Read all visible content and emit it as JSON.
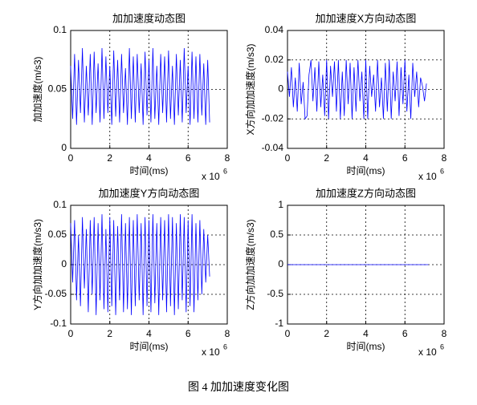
{
  "caption": "图 4 加加速度变化图",
  "chart_data": [
    {
      "type": "line",
      "title": "加加速度动态图",
      "xlabel": "时间(ms)",
      "ylabel": "加加速度(m/s3)",
      "x_scale": {
        "base": "x 10",
        "power": "6"
      },
      "x": [
        0,
        0.1,
        0.2,
        0.3,
        0.4,
        0.5,
        0.6,
        0.7,
        0.8,
        0.9,
        1,
        1.1,
        1.2,
        1.3,
        1.4,
        1.5,
        1.6,
        1.7,
        1.8,
        1.9,
        2,
        2.1,
        2.2,
        2.3,
        2.4,
        2.5,
        2.6,
        2.7,
        2.8,
        2.9,
        3,
        3.1,
        3.2,
        3.3,
        3.4,
        3.5,
        3.6,
        3.7,
        3.8,
        3.9,
        4,
        4.1,
        4.2,
        4.3,
        4.4,
        4.5,
        4.6,
        4.7,
        4.8,
        4.9,
        5,
        5.1,
        5.2,
        5.3,
        5.4,
        5.5,
        5.6,
        5.7,
        5.8,
        5.9,
        6,
        6.1,
        6.2,
        6.3,
        6.4,
        6.5,
        6.6,
        6.7,
        6.8,
        6.9,
        7,
        7.1
      ],
      "series": [
        {
          "color": "#0000ff",
          "values": [
            0.07,
            0.025,
            0.08,
            0.02,
            0.075,
            0.03,
            0.085,
            0.022,
            0.07,
            0.028,
            0.08,
            0.02,
            0.082,
            0.03,
            0.072,
            0.022,
            0.085,
            0.025,
            0.078,
            0.03,
            0.07,
            0.02,
            0.083,
            0.027,
            0.075,
            0.022,
            0.08,
            0.03,
            0.068,
            0.02,
            0.085,
            0.025,
            0.078,
            0.022,
            0.08,
            0.03,
            0.072,
            0.02,
            0.082,
            0.028,
            0.075,
            0.022,
            0.085,
            0.025,
            0.07,
            0.02,
            0.08,
            0.03,
            0.078,
            0.022,
            0.083,
            0.025,
            0.07,
            0.02,
            0.08,
            0.028,
            0.075,
            0.022,
            0.085,
            0.03,
            0.07,
            0.02,
            0.082,
            0.025,
            0.078,
            0.022,
            0.08,
            0.028,
            0.072,
            0.02,
            0.075,
            0.022
          ]
        }
      ],
      "xlim": [
        0,
        8
      ],
      "xticks": [
        0,
        2,
        4,
        6,
        8
      ],
      "ylim": [
        0,
        0.1
      ],
      "yticks": [
        0,
        0.05,
        0.1
      ],
      "grid": true
    },
    {
      "type": "line",
      "title": "加加速度X方向动态图",
      "xlabel": "时间(ms)",
      "ylabel": "X方向加加速度(m/s3)",
      "x_scale": {
        "base": "x 10",
        "power": "6"
      },
      "x": [
        0,
        0.1,
        0.2,
        0.3,
        0.4,
        0.5,
        0.6,
        0.7,
        0.8,
        0.9,
        1,
        1.1,
        1.2,
        1.3,
        1.4,
        1.5,
        1.6,
        1.7,
        1.8,
        1.9,
        2,
        2.1,
        2.2,
        2.3,
        2.4,
        2.5,
        2.6,
        2.7,
        2.8,
        2.9,
        3,
        3.1,
        3.2,
        3.3,
        3.4,
        3.5,
        3.6,
        3.7,
        3.8,
        3.9,
        4,
        4.1,
        4.2,
        4.3,
        4.4,
        4.5,
        4.6,
        4.7,
        4.8,
        4.9,
        5,
        5.1,
        5.2,
        5.3,
        5.4,
        5.5,
        5.6,
        5.7,
        5.8,
        5.9,
        6,
        6.1,
        6.2,
        6.3,
        6.4,
        6.5,
        6.6,
        6.7,
        6.8,
        6.9,
        7,
        7.1
      ],
      "series": [
        {
          "color": "#0000ff",
          "values": [
            0.012,
            -0.005,
            0.015,
            -0.012,
            0.008,
            -0.015,
            0.018,
            -0.01,
            0.005,
            -0.02,
            -0.018,
            0.01,
            0.02,
            -0.008,
            0.015,
            -0.015,
            0.019,
            -0.012,
            0.01,
            -0.018,
            0.02,
            -0.02,
            0.016,
            -0.005,
            0.019,
            -0.015,
            0.02,
            -0.02,
            0.012,
            -0.018,
            0.02,
            -0.01,
            0.018,
            -0.02,
            0.015,
            -0.015,
            0.02,
            -0.008,
            0.012,
            -0.02,
            0.02,
            -0.02,
            0.016,
            -0.005,
            0.01,
            -0.015,
            0.02,
            -0.012,
            0.008,
            -0.02,
            0.018,
            -0.015,
            0.02,
            -0.02,
            0.012,
            -0.008,
            0.019,
            -0.018,
            0.015,
            -0.01,
            0.02,
            -0.015,
            0.01,
            -0.02,
            0.018,
            -0.005,
            0.012,
            -0.012,
            0.008,
            0.002,
            -0.008,
            0.004
          ]
        }
      ],
      "xlim": [
        0,
        8
      ],
      "xticks": [
        0,
        2,
        4,
        6,
        8
      ],
      "ylim": [
        -0.04,
        0.04
      ],
      "yticks": [
        -0.04,
        -0.02,
        0,
        0.02,
        0.04
      ],
      "grid": true
    },
    {
      "type": "line",
      "title": "加加速度Y方向动态图",
      "xlabel": "时间(ms)",
      "ylabel": "Y方向加加速度(m/s3)",
      "x_scale": {
        "base": "x 10",
        "power": "6"
      },
      "x": [
        0,
        0.1,
        0.2,
        0.3,
        0.4,
        0.5,
        0.6,
        0.7,
        0.8,
        0.9,
        1,
        1.1,
        1.2,
        1.3,
        1.4,
        1.5,
        1.6,
        1.7,
        1.8,
        1.9,
        2,
        2.1,
        2.2,
        2.3,
        2.4,
        2.5,
        2.6,
        2.7,
        2.8,
        2.9,
        3,
        3.1,
        3.2,
        3.3,
        3.4,
        3.5,
        3.6,
        3.7,
        3.8,
        3.9,
        4,
        4.1,
        4.2,
        4.3,
        4.4,
        4.5,
        4.6,
        4.7,
        4.8,
        4.9,
        5,
        5.1,
        5.2,
        5.3,
        5.4,
        5.5,
        5.6,
        5.7,
        5.8,
        5.9,
        6,
        6.1,
        6.2,
        6.3,
        6.4,
        6.5,
        6.6,
        6.7,
        6.8,
        6.9,
        7,
        7.1
      ],
      "series": [
        {
          "color": "#0000ff",
          "values": [
            0.07,
            -0.03,
            0.075,
            -0.06,
            0.05,
            -0.07,
            0.08,
            -0.04,
            0.06,
            -0.08,
            0.075,
            -0.05,
            0.08,
            -0.085,
            0.07,
            -0.06,
            0.085,
            -0.075,
            0.06,
            -0.08,
            0.08,
            -0.07,
            0.075,
            -0.085,
            0.065,
            -0.06,
            0.085,
            -0.08,
            0.07,
            -0.075,
            0.08,
            -0.085,
            0.075,
            -0.07,
            0.085,
            -0.06,
            0.07,
            -0.085,
            0.08,
            -0.07,
            0.075,
            -0.08,
            0.085,
            -0.065,
            0.07,
            -0.085,
            0.08,
            -0.06,
            0.075,
            -0.08,
            0.085,
            -0.07,
            0.08,
            -0.085,
            0.07,
            -0.075,
            0.085,
            -0.06,
            0.08,
            -0.08,
            0.075,
            -0.07,
            0.085,
            -0.08,
            0.07,
            -0.06,
            0.075,
            -0.05,
            0.06,
            -0.03,
            0.05,
            -0.02
          ]
        }
      ],
      "xlim": [
        0,
        8
      ],
      "xticks": [
        0,
        2,
        4,
        6,
        8
      ],
      "ylim": [
        -0.1,
        0.1
      ],
      "yticks": [
        -0.1,
        -0.05,
        0,
        0.05,
        0.1
      ],
      "grid": true
    },
    {
      "type": "line",
      "title": "加加速度Z方向动态图",
      "xlabel": "时间(ms)",
      "ylabel": "Z方向加加速度(m/s3)",
      "x_scale": {
        "base": "x 10",
        "power": "6"
      },
      "x": [
        0,
        7.2
      ],
      "series": [
        {
          "color": "#0000ff",
          "values": [
            0,
            0
          ]
        }
      ],
      "xlim": [
        0,
        8
      ],
      "xticks": [
        0,
        2,
        4,
        6,
        8
      ],
      "ylim": [
        -1,
        1
      ],
      "yticks": [
        -1,
        -0.5,
        0,
        0.5,
        1
      ],
      "grid": true
    }
  ]
}
